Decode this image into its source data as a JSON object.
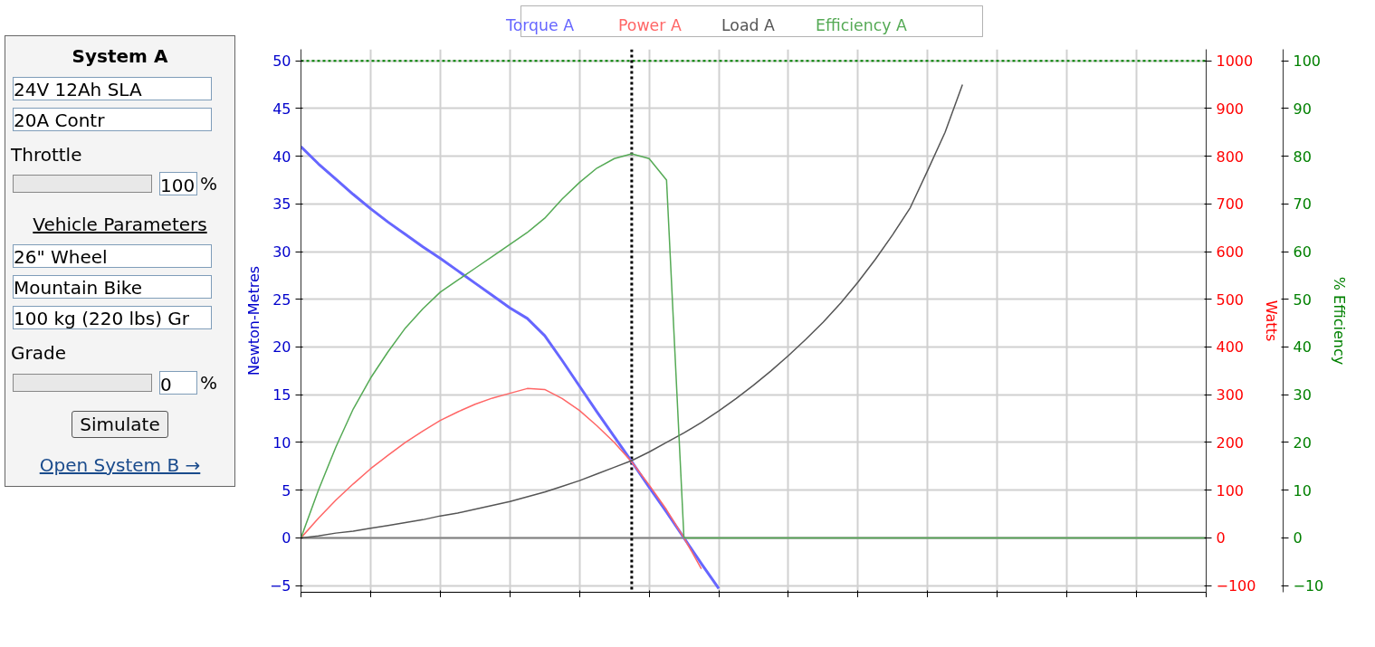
{
  "chart_data": {
    "type": "line",
    "categories": [
      null,
      null,
      null,
      null,
      null,
      null,
      null,
      null,
      null,
      null,
      null,
      null,
      null,
      null,
      null,
      null,
      null,
      null,
      null,
      null,
      null,
      null,
      null,
      null,
      null,
      null,
      null,
      null,
      null,
      null,
      null,
      null,
      null,
      null,
      null,
      null,
      null,
      null,
      null,
      null,
      null,
      null,
      null,
      null,
      null,
      null,
      null,
      null,
      null,
      null,
      null,
      null,
      null
    ],
    "series": [
      {
        "name": "Torque A",
        "color": "#6666ff",
        "axis": "y",
        "values": [
          41.0,
          39.2,
          37.6,
          36.0,
          34.5,
          33.1,
          31.8,
          30.5,
          29.3,
          28.0,
          26.7,
          25.4,
          24.1,
          23.0,
          21.2,
          18.6,
          15.9,
          13.2,
          10.6,
          8.0,
          5.3,
          2.7,
          0,
          -2.7,
          -5.3,
          null,
          null,
          null,
          null,
          null,
          null,
          null,
          null,
          null,
          null,
          null,
          null,
          null,
          null,
          null,
          null,
          null,
          null,
          null,
          null,
          null,
          null,
          null,
          null,
          null,
          null,
          null,
          null
        ]
      },
      {
        "name": "Power A",
        "color": "#ff6666",
        "axis": "y2",
        "values": [
          0,
          41,
          79,
          113,
          145,
          173,
          200,
          224,
          246,
          264,
          280,
          293,
          303,
          313,
          311,
          292,
          267,
          235,
          200,
          159,
          111,
          59,
          0,
          -65,
          null,
          null,
          null,
          null,
          null,
          null,
          null,
          null,
          null,
          null,
          null,
          null,
          null,
          null,
          null,
          null,
          null,
          null,
          null,
          null,
          null,
          null,
          null,
          null,
          null,
          null,
          null,
          null,
          null
        ]
      },
      {
        "name": "Load A",
        "color": "#555555",
        "axis": "y",
        "values": [
          0,
          0.2,
          0.5,
          0.7,
          1.0,
          1.3,
          1.6,
          1.9,
          2.3,
          2.6,
          3.0,
          3.4,
          3.8,
          4.3,
          4.8,
          5.4,
          6.0,
          6.7,
          7.4,
          8.1,
          9.0,
          10.0,
          11.0,
          12.1,
          13.3,
          14.6,
          16.0,
          17.5,
          19.1,
          20.8,
          22.6,
          24.6,
          26.8,
          29.2,
          31.8,
          34.6,
          38.5,
          42.5,
          47.5,
          null,
          null,
          null,
          null,
          null,
          null,
          null,
          null,
          null,
          null,
          null,
          null,
          null,
          null
        ]
      },
      {
        "name": "Efficiency A",
        "color": "#55aa55",
        "axis": "y3",
        "values": [
          0,
          10,
          19,
          27,
          33.5,
          39,
          44,
          48,
          51.5,
          54,
          56.5,
          59,
          61.5,
          64,
          67,
          71,
          74.5,
          77.5,
          79.5,
          80.5,
          79.5,
          75,
          0,
          0,
          0,
          0,
          0,
          0,
          0,
          0,
          0,
          0,
          0,
          0,
          0,
          0,
          0,
          0,
          0,
          0,
          0,
          0,
          0,
          0,
          0,
          0,
          0,
          0,
          0,
          0,
          0,
          0,
          0
        ]
      }
    ],
    "ylabel": "Newton-Metres",
    "y2label": "Watts",
    "y3label": "% Efficiency",
    "ylim": [
      -5.7,
      51.2
    ],
    "yticks": [
      -5,
      0,
      5,
      10,
      15,
      20,
      25,
      30,
      35,
      40,
      45,
      50
    ],
    "y2lim": [
      -114,
      1024
    ],
    "y2ticks": [
      -100,
      0,
      100,
      200,
      300,
      400,
      500,
      600,
      700,
      800,
      900,
      1000
    ],
    "y3lim": [
      -11.4,
      102.4
    ],
    "y3ticks": [
      -10,
      0,
      10,
      20,
      30,
      40,
      50,
      60,
      70,
      80,
      90,
      100
    ],
    "grid": true,
    "legend": "top",
    "tick_labels": "y",
    "ref_lines": [
      {
        "axis": "y3",
        "value": 100,
        "line_style": "dotted",
        "color": "#008000"
      },
      {
        "axis": "y",
        "value": 0,
        "color": "#808080"
      }
    ],
    "annotations": [
      "System A",
      "24V 12Ah SLA",
      "20A Contr",
      "Throttle",
      "100",
      "%",
      "Vehicle Parameters",
      "26\"  Wheel",
      "Mountain Bike",
      "100 kg (220 lbs) Gr",
      "Grade",
      "0",
      "%",
      "Simulate",
      "Open System B →"
    ]
  }
}
